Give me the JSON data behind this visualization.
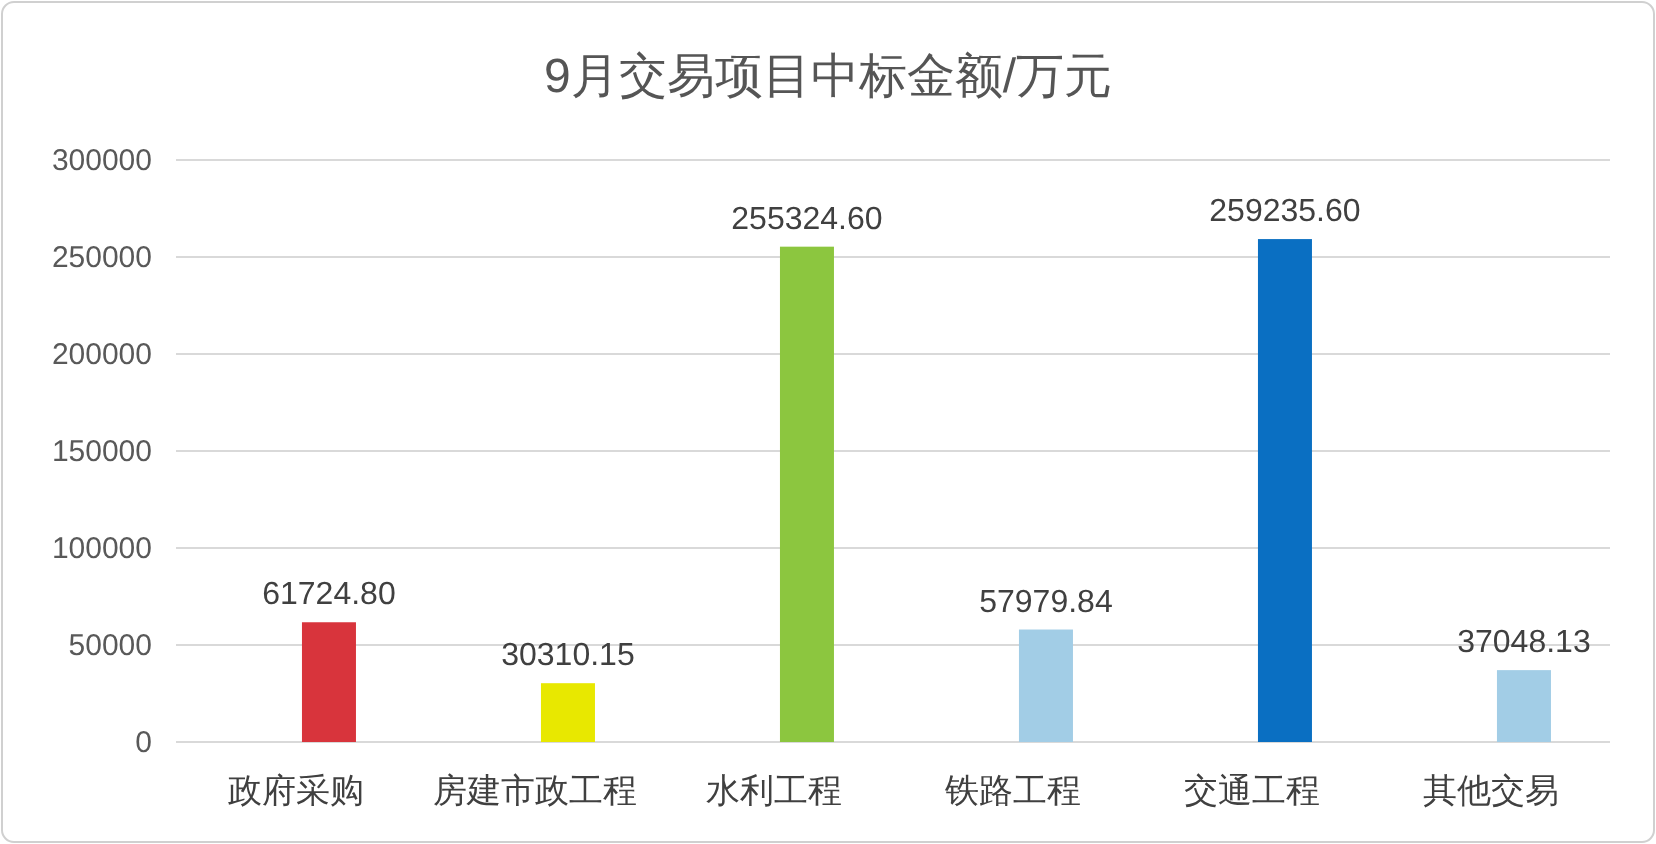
{
  "chart_data": {
    "type": "bar",
    "title": "9月交易项目中标金额/万元",
    "categories": [
      "政府采购",
      "房建市政工程",
      "水利工程",
      "铁路工程",
      "交通工程",
      "其他交易"
    ],
    "values": [
      61724.8,
      30310.15,
      255324.6,
      57979.84,
      259235.6,
      37048.13
    ],
    "value_labels": [
      "61724.80",
      "30310.15",
      "255324.60",
      "57979.84",
      "259235.60",
      "37048.13"
    ],
    "colors": [
      "#d8343c",
      "#e8e800",
      "#8cc63f",
      "#a2cde6",
      "#0a6fc2",
      "#a2cde6"
    ],
    "ylim": [
      0,
      300000
    ],
    "yticks": [
      0,
      50000,
      100000,
      150000,
      200000,
      250000,
      300000
    ],
    "grid": "y"
  }
}
